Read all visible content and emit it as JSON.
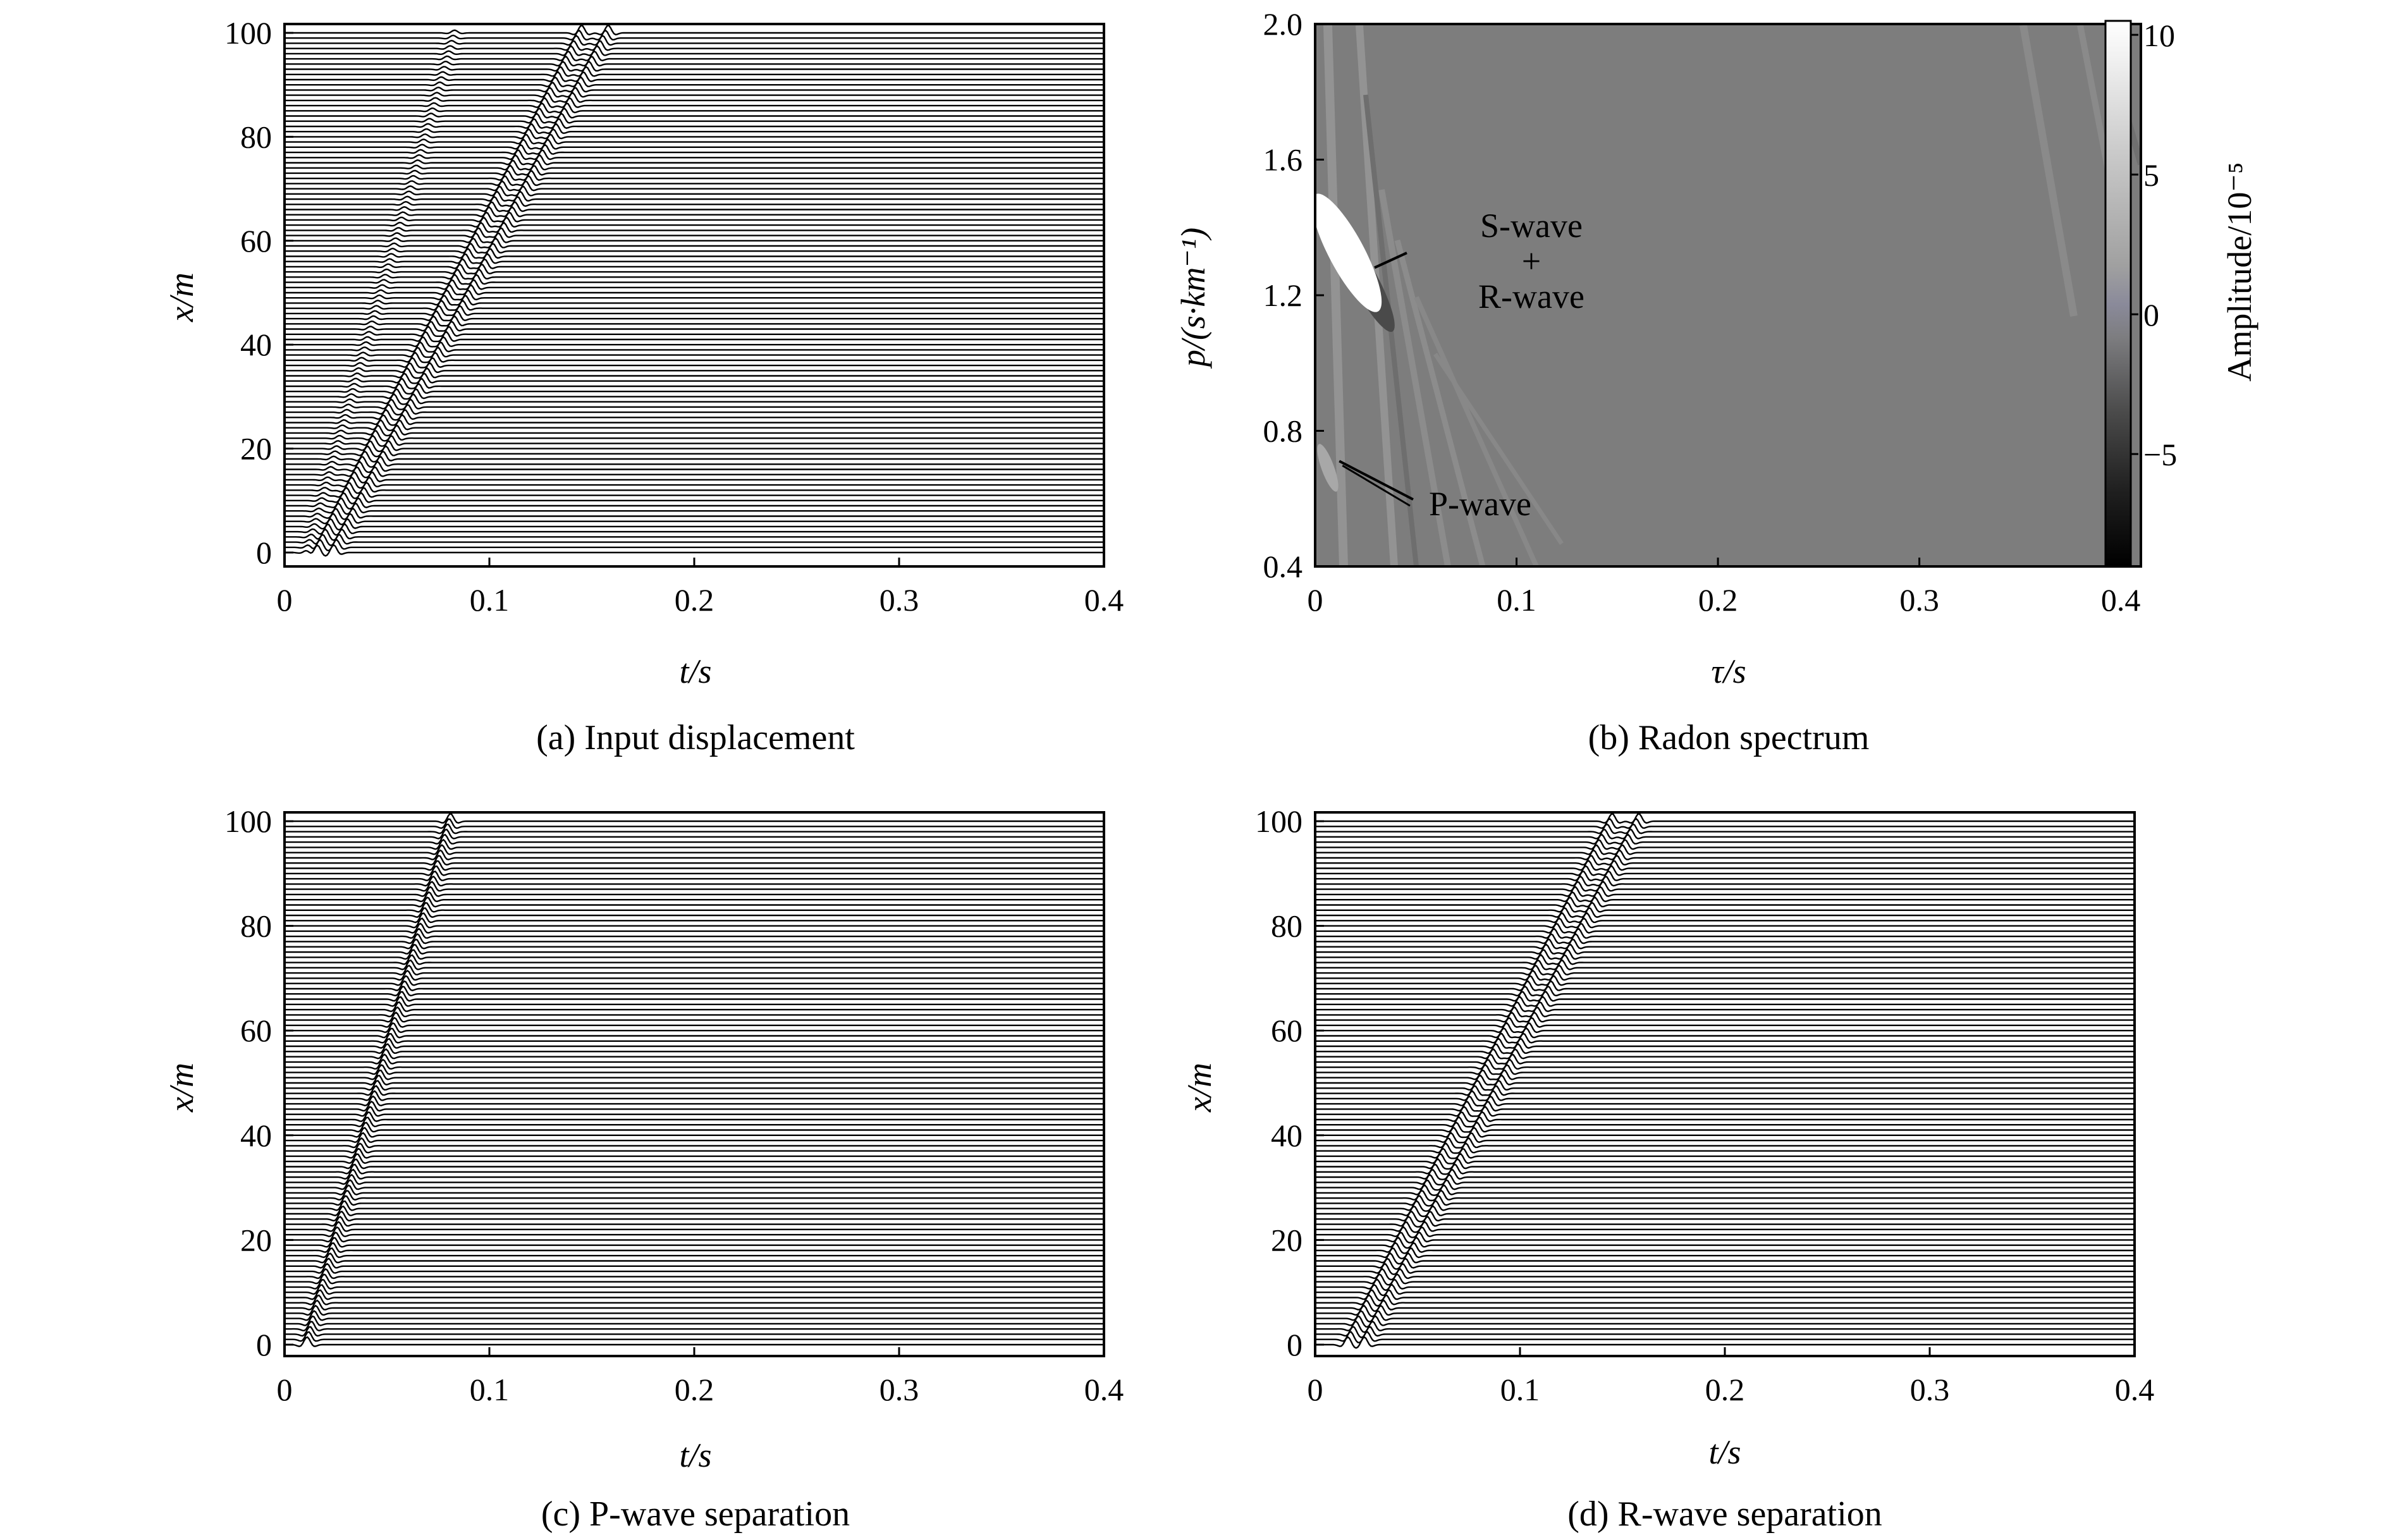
{
  "chart_data": [
    {
      "id": "a",
      "type": "line",
      "caption": "(a) Input displacement",
      "xlabel": "t/s",
      "ylabel": "x/m",
      "xlim": [
        0,
        0.4
      ],
      "ylim": [
        0,
        100
      ],
      "xticks": [
        "0",
        "0.1",
        "0.2",
        "0.3",
        "0.4"
      ],
      "yticks": [
        "0",
        "20",
        "40",
        "60",
        "80",
        "100"
      ],
      "trace_count": 100,
      "arrivals": [
        {
          "t0": 0.011,
          "t100": 0.083,
          "weight": 0.35
        },
        {
          "t0": 0.016,
          "t100": 0.145,
          "weight": 1.0
        },
        {
          "t0": 0.024,
          "t100": 0.158,
          "weight": 1.0
        }
      ]
    },
    {
      "id": "b",
      "type": "heatmap",
      "caption": "(b) Radon spectrum",
      "xlabel": "τ/s",
      "ylabel": "p/(s·km⁻¹)",
      "xlim": [
        0,
        0.41
      ],
      "ylim": [
        0.4,
        2.0
      ],
      "xticks": [
        "0",
        "0.1",
        "0.2",
        "0.3",
        "0.4"
      ],
      "yticks": [
        "0.4",
        "0.8",
        "1.2",
        "1.6",
        "2.0"
      ],
      "colorbar": {
        "label": "Amplitude/10⁻⁵",
        "range": [
          -9,
          10.5
        ],
        "ticks": [
          "10",
          "5",
          "0",
          "−5"
        ],
        "tick_values": [
          10,
          5,
          0,
          -5
        ]
      },
      "annotations": [
        {
          "text_lines": [
            "S-wave",
            "+",
            "R-wave"
          ],
          "tau": 0.027,
          "p": 1.3
        },
        {
          "text_lines": [
            "P-wave"
          ],
          "tau": 0.012,
          "p": 0.72
        }
      ]
    },
    {
      "id": "c",
      "type": "line",
      "caption": "(c) P-wave separation",
      "xlabel": "t/s",
      "ylabel": "x/m",
      "xlim": [
        0,
        0.4
      ],
      "ylim": [
        0,
        100
      ],
      "xticks": [
        "0",
        "0.1",
        "0.2",
        "0.3",
        "0.4"
      ],
      "yticks": [
        "0",
        "20",
        "40",
        "60",
        "80",
        "100"
      ],
      "trace_count": 100,
      "arrivals": [
        {
          "t0": 0.011,
          "t100": 0.081,
          "weight": 1.0
        }
      ]
    },
    {
      "id": "d",
      "type": "line",
      "caption": "(d) R-wave separation",
      "xlabel": "t/s",
      "ylabel": "x/m",
      "xlim": [
        0,
        0.4
      ],
      "ylim": [
        0,
        100
      ],
      "xticks": [
        "0",
        "0.1",
        "0.2",
        "0.3",
        "0.4"
      ],
      "yticks": [
        "0",
        "20",
        "40",
        "60",
        "80",
        "100"
      ],
      "trace_count": 100,
      "arrivals": [
        {
          "t0": 0.016,
          "t100": 0.145,
          "weight": 1.0
        },
        {
          "t0": 0.024,
          "t100": 0.158,
          "weight": 1.0
        }
      ]
    }
  ]
}
